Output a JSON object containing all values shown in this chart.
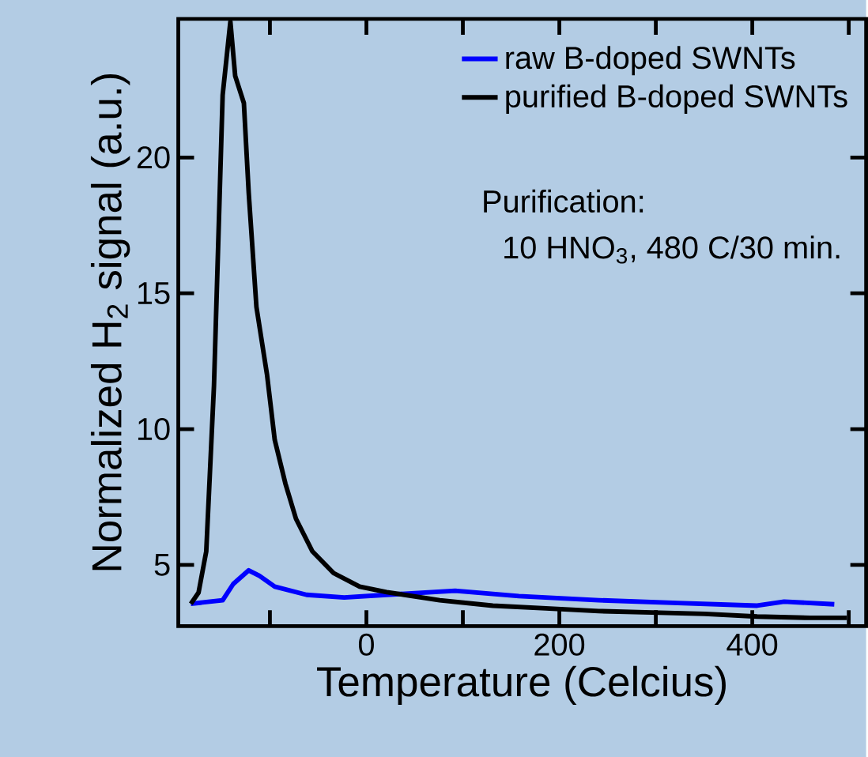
{
  "chart_data": {
    "type": "line",
    "xlabel": "Temperature (Celcius)",
    "ylabel": "Normalized H$_{2}$ signal (a.u.)",
    "xlim": [
      -195,
      518
    ],
    "ylim": [
      2.75,
      25.1
    ],
    "xticks": [
      {
        "value": -100,
        "label": null
      },
      0,
      {
        "value": 100,
        "label": null
      },
      200,
      {
        "value": 300,
        "label": null
      },
      400,
      {
        "value": 500,
        "label": null
      }
    ],
    "yticks": [
      5,
      10,
      15,
      20
    ],
    "legend": "top right",
    "grid": false,
    "marker": "none",
    "line_style": "solid",
    "annotations": [
      "Purification:",
      "10 HNO$_{3}$, 480 C/30 min."
    ],
    "series": [
      {
        "name": "raw B-doped SWNTs",
        "color": "#0000ff",
        "x": [
          -182,
          -149,
          -138,
          -122,
          -111,
          -95,
          -62,
          -23,
          21,
          92,
          158,
          241,
          323,
          405,
          433,
          485
        ],
        "values": [
          3.57,
          3.7,
          4.3,
          4.8,
          4.6,
          4.2,
          3.9,
          3.8,
          3.9,
          4.05,
          3.85,
          3.7,
          3.6,
          3.5,
          3.65,
          3.55
        ]
      },
      {
        "name": "purified B-doped SWNTs",
        "color": "#000000",
        "x": [
          -182,
          -174,
          -166,
          -158,
          -149,
          -141,
          -136,
          -127,
          -122,
          -114,
          -103,
          -95,
          -84,
          -73,
          -56,
          -34,
          -7,
          21,
          76,
          131,
          186,
          241,
          296,
          351,
          405,
          460,
          498
        ],
        "values": [
          3.57,
          3.98,
          5.5,
          11.6,
          22.3,
          25.0,
          23.0,
          22.0,
          18.7,
          14.5,
          12.0,
          9.6,
          8.0,
          6.7,
          5.5,
          4.7,
          4.2,
          4.0,
          3.7,
          3.5,
          3.4,
          3.3,
          3.25,
          3.2,
          3.1,
          3.05,
          3.05
        ]
      }
    ]
  }
}
